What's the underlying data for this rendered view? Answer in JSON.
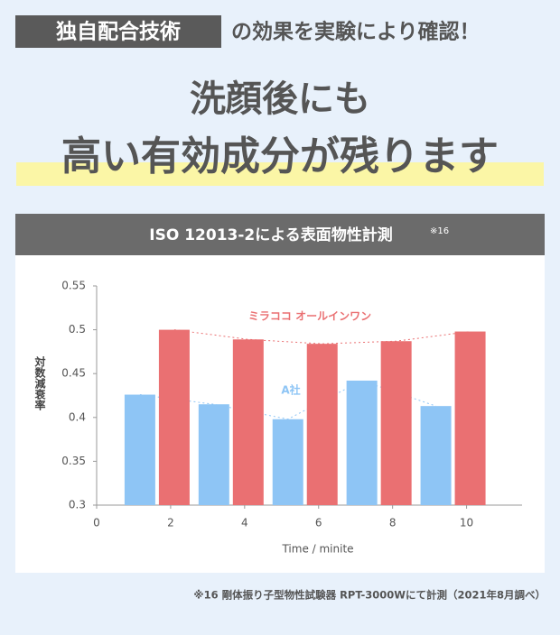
{
  "header": {
    "badge": "独自配合技術",
    "tagline": "の効果を実験により確認！"
  },
  "headline": {
    "line1": "洗顔後にも",
    "line2": "高い有効成分が残ります"
  },
  "panel": {
    "title": "ISO 12013-2による表面物性計測",
    "note": "※16"
  },
  "chart_data": {
    "type": "bar",
    "x": [
      2,
      4,
      6,
      8,
      10
    ],
    "series": [
      {
        "name": "A社",
        "color": "#8ec5f5",
        "values": [
          0.426,
          0.415,
          0.398,
          0.442,
          0.413
        ]
      },
      {
        "name": "ミラココ オールインワン",
        "color": "#ea7072",
        "values": [
          0.5,
          0.489,
          0.484,
          0.487,
          0.498
        ]
      }
    ],
    "xlim": [
      0,
      11.5
    ],
    "xticks": [
      0,
      2,
      4,
      6,
      8,
      10
    ],
    "ylim": [
      0.3,
      0.55
    ],
    "yticks": [
      0.3,
      0.35,
      0.4,
      0.45,
      0.5,
      0.55
    ],
    "xlabel": "Time / minite",
    "ylabel": "対数減衰率"
  },
  "footnote": "※16 剛体振り子型物性試験器 RPT-3000Wにて計測（2021年8月調べ）"
}
